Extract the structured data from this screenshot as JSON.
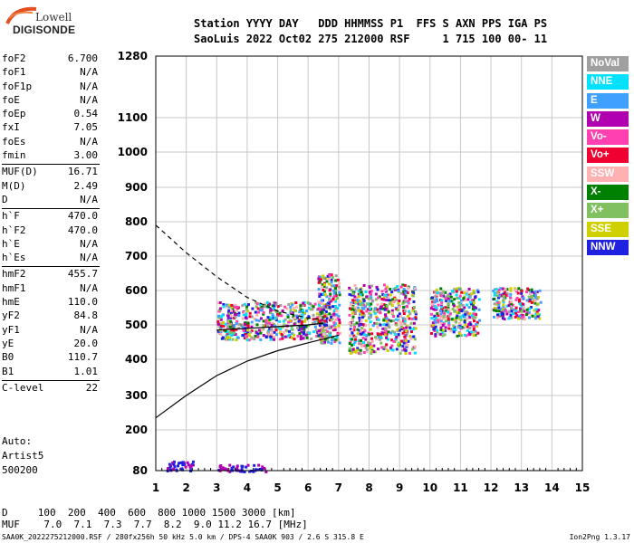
{
  "logo": {
    "line1": "Lowell",
    "line2": "DIGISONDE"
  },
  "header": {
    "line1": "Station YYYY DAY   DDD HHMMSS P1  FFS S AXN PPS IGA PS",
    "line2": "SaoLuis 2022 Oct02 275 212000 RSF     1 715 100 00- 11"
  },
  "params": [
    [
      {
        "n": "foF2",
        "v": "6.700"
      },
      {
        "n": "foF1",
        "v": "N/A"
      },
      {
        "n": "foF1p",
        "v": "N/A"
      },
      {
        "n": "foE",
        "v": "N/A"
      },
      {
        "n": "foEp",
        "v": "0.54"
      },
      {
        "n": "fxI",
        "v": "7.05"
      },
      {
        "n": "foEs",
        "v": "N/A"
      },
      {
        "n": "fmin",
        "v": "3.00"
      }
    ],
    [
      {
        "n": "MUF(D)",
        "v": "16.71"
      },
      {
        "n": "M(D)",
        "v": "2.49"
      },
      {
        "n": "D",
        "v": "N/A"
      }
    ],
    [
      {
        "n": "h`F",
        "v": "470.0"
      },
      {
        "n": "h`F2",
        "v": "470.0"
      },
      {
        "n": "h`E",
        "v": "N/A"
      },
      {
        "n": "h`Es",
        "v": "N/A"
      }
    ],
    [
      {
        "n": "hmF2",
        "v": "455.7"
      },
      {
        "n": "hmF1",
        "v": "N/A"
      },
      {
        "n": "hmE",
        "v": "110.0"
      },
      {
        "n": "yF2",
        "v": "84.8"
      },
      {
        "n": "yF1",
        "v": "N/A"
      },
      {
        "n": "yE",
        "v": "20.0"
      },
      {
        "n": "B0",
        "v": "110.7"
      },
      {
        "n": "B1",
        "v": "1.01"
      }
    ],
    [
      {
        "n": "C-level",
        "v": "22"
      }
    ]
  ],
  "auto": {
    "line1": "Auto:",
    "line2": "Artist5",
    "line3": "500200"
  },
  "legend": [
    {
      "label": "NoVal",
      "color": "#a0a0a0"
    },
    {
      "label": "NNE",
      "color": "#00e0ff"
    },
    {
      "label": "E",
      "color": "#3fa0ff"
    },
    {
      "label": "W",
      "color": "#b000b0"
    },
    {
      "label": "Vo-",
      "color": "#ff40b0"
    },
    {
      "label": "Vo+",
      "color": "#f00030"
    },
    {
      "label": "SSW",
      "color": "#ffb0b0"
    },
    {
      "label": "X-",
      "color": "#008000"
    },
    {
      "label": "X+",
      "color": "#80c060"
    },
    {
      "label": "SSE",
      "color": "#d0d000"
    },
    {
      "label": "NNW",
      "color": "#2020e0"
    }
  ],
  "bottom": {
    "d_line": "D     100  200  400  600  800 1000 1500 3000 [km]",
    "muf_line": "MUF    7.0  7.1  7.3  7.7  8.2  9.0 11.2 16.7 [MHz]"
  },
  "footer": {
    "left": "SAA0K_2022275212000.RSF / 280fx256h 50 kHz 5.0 km / DPS-4 SAA0K 903 / 2.6 S 315.8 E",
    "right": "Ion2Png 1.3.17"
  },
  "chart_data": {
    "type": "scatter",
    "x_ticks": [
      "1",
      "2",
      "3",
      "4",
      "5",
      "6",
      "7",
      "8",
      "9",
      "10",
      "11",
      "12",
      "13",
      "14",
      "15"
    ],
    "y_ticks": [
      "80",
      "200",
      "300",
      "400",
      "500",
      "600",
      "700",
      "800",
      "900",
      "1000",
      "1100",
      "1280"
    ],
    "xlim": [
      1,
      15
    ],
    "ylim": [
      80,
      1280
    ],
    "grid": true,
    "echo_regions": [
      {
        "x": [
          3.0,
          6.6
        ],
        "y": [
          460,
          570
        ]
      },
      {
        "x": [
          6.3,
          7.0
        ],
        "y": [
          450,
          650
        ]
      },
      {
        "x": [
          7.3,
          9.5
        ],
        "y": [
          420,
          620
        ]
      },
      {
        "x": [
          10.0,
          11.6
        ],
        "y": [
          470,
          610
        ]
      },
      {
        "x": [
          12.0,
          13.6
        ],
        "y": [
          520,
          610
        ]
      },
      {
        "x": [
          1.3,
          2.2
        ],
        "y": [
          80,
          110
        ]
      },
      {
        "x": [
          3.0,
          4.6
        ],
        "y": [
          80,
          100
        ]
      }
    ],
    "traces": [
      {
        "name": "",
        "style": "dashed",
        "points": [
          [
            1.0,
            790
          ],
          [
            2.0,
            710
          ],
          [
            3.0,
            640
          ],
          [
            4.0,
            580
          ],
          [
            5.0,
            540
          ],
          [
            6.0,
            520
          ],
          [
            6.5,
            515
          ]
        ]
      },
      {
        "name": "",
        "style": "solid",
        "points": [
          [
            1.0,
            235
          ],
          [
            2.0,
            300
          ],
          [
            3.0,
            355
          ],
          [
            4.0,
            395
          ],
          [
            5.0,
            425
          ],
          [
            6.0,
            448
          ],
          [
            7.0,
            470
          ]
        ]
      },
      {
        "name": "",
        "style": "solid",
        "points": [
          [
            3.0,
            485
          ],
          [
            4.0,
            490
          ],
          [
            5.0,
            495
          ],
          [
            6.0,
            500
          ],
          [
            6.5,
            505
          ]
        ]
      }
    ]
  }
}
